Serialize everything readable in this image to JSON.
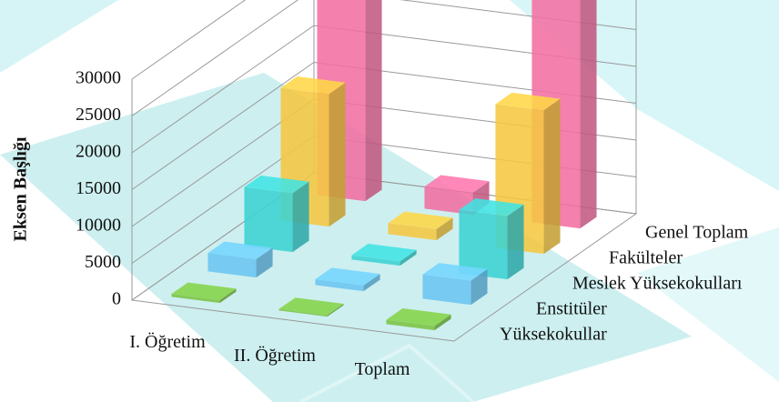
{
  "chart_data": {
    "type": "bar3d",
    "y_label": "Eksen Başlığı",
    "categories": [
      "I. Öğretim",
      "II. Öğretim",
      "Toplam"
    ],
    "series": [
      {
        "name": "Yüksekokullar",
        "color": "#7cc444",
        "values": [
          400,
          200,
          600
        ]
      },
      {
        "name": "Enstitüler",
        "color": "#6cc6f2",
        "values": [
          2500,
          800,
          3300
        ]
      },
      {
        "name": "Meslek Yüksekokulları",
        "color": "#3dd3d3",
        "values": [
          8000,
          600,
          8600
        ]
      },
      {
        "name": "Fakülteler",
        "color": "#f5c842",
        "values": [
          18000,
          1500,
          19500
        ]
      },
      {
        "name": "Genel Toplam",
        "color": "#f26fa2",
        "values": [
          28500,
          3000,
          31500
        ]
      }
    ],
    "ylim": [
      0,
      30000
    ],
    "yticks": [
      0,
      5000,
      10000,
      15000,
      20000,
      25000,
      30000
    ],
    "grid": true
  }
}
